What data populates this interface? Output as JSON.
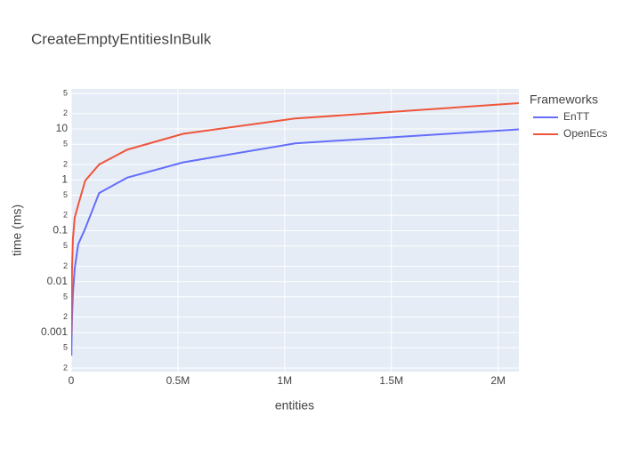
{
  "chart_data": {
    "type": "line",
    "title": "CreateEmptyEntitiesInBulk",
    "x_label": "entities",
    "y_label": "time (ms)",
    "x": [
      1024,
      2048,
      4096,
      8192,
      16384,
      32768,
      65536,
      131072,
      262144,
      524288,
      1048576,
      2097152
    ],
    "series": [
      {
        "name": "EnTT",
        "color": "#636efa",
        "values": [
          0.00035,
          0.0008,
          0.002,
          0.006,
          0.018,
          0.054,
          0.11,
          0.55,
          1.1,
          2.2,
          5.2,
          9.8
        ]
      },
      {
        "name": "OpenEcs",
        "color": "#ef553b",
        "values": [
          0.0009,
          0.004,
          0.02,
          0.07,
          0.18,
          0.32,
          0.96,
          2.0,
          3.9,
          8,
          16,
          32
        ]
      }
    ],
    "legend_title": "Frameworks",
    "legend_position": "right",
    "xlim": [
      0,
      2097152
    ],
    "xticks": [
      0,
      {
        "value": 500000,
        "label": "0.5M"
      },
      {
        "value": 1000000,
        "label": "1M"
      },
      {
        "value": 1500000,
        "label": "1.5M"
      },
      {
        "value": 2000000,
        "label": "2M"
      }
    ],
    "ylim": [
      0.00017,
      61
    ],
    "y_scale": "log",
    "yticks": [
      {
        "value": 0.0002,
        "label": "2"
      },
      {
        "value": 0.0005,
        "label": "5"
      },
      0.001,
      {
        "value": 0.002,
        "label": "2"
      },
      {
        "value": 0.005,
        "label": "5"
      },
      0.01,
      {
        "value": 0.02,
        "label": "2"
      },
      {
        "value": 0.05,
        "label": "5"
      },
      0.1,
      {
        "value": 0.2,
        "label": "2"
      },
      {
        "value": 0.5,
        "label": "5"
      },
      1,
      {
        "value": 2,
        "label": "2"
      },
      {
        "value": 5,
        "label": "5"
      },
      10,
      {
        "value": 20,
        "label": "2"
      },
      {
        "value": 50,
        "label": "5"
      }
    ],
    "grid": true
  }
}
